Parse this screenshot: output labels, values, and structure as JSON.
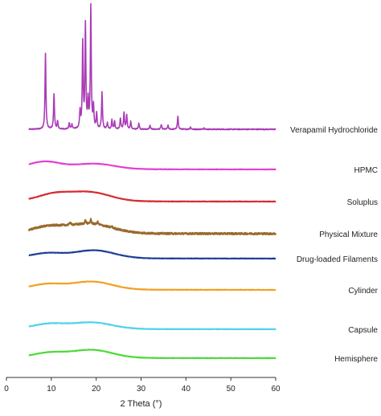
{
  "chart_data": {
    "type": "line",
    "xlabel": "2 Theta (°)",
    "ylabel": "",
    "xlim": [
      0,
      60
    ],
    "xticks": [
      0,
      10,
      20,
      30,
      40,
      50,
      60
    ],
    "x_range_of_data": [
      5,
      60
    ],
    "grid": false,
    "legend": "labels at right end of each trace",
    "series": [
      {
        "name": "Verapamil Hydrochloride",
        "color": "#a93cb6",
        "baseline": 0.0,
        "peaks": [
          {
            "x": 8.7,
            "h": 1.0
          },
          {
            "x": 10.6,
            "h": 0.46
          },
          {
            "x": 11.4,
            "h": 0.1
          },
          {
            "x": 14.0,
            "h": 0.08
          },
          {
            "x": 14.6,
            "h": 0.06
          },
          {
            "x": 16.4,
            "h": 0.22
          },
          {
            "x": 17.0,
            "h": 1.12
          },
          {
            "x": 17.6,
            "h": 1.35
          },
          {
            "x": 18.2,
            "h": 0.35
          },
          {
            "x": 18.8,
            "h": 1.6
          },
          {
            "x": 19.4,
            "h": 0.28
          },
          {
            "x": 20.1,
            "h": 0.2
          },
          {
            "x": 21.3,
            "h": 0.48
          },
          {
            "x": 22.5,
            "h": 0.08
          },
          {
            "x": 23.5,
            "h": 0.12
          },
          {
            "x": 24.1,
            "h": 0.1
          },
          {
            "x": 25.4,
            "h": 0.14
          },
          {
            "x": 26.2,
            "h": 0.22
          },
          {
            "x": 26.8,
            "h": 0.18
          },
          {
            "x": 27.7,
            "h": 0.1
          },
          {
            "x": 29.5,
            "h": 0.08
          },
          {
            "x": 32.0,
            "h": 0.05
          },
          {
            "x": 34.5,
            "h": 0.06
          },
          {
            "x": 36.0,
            "h": 0.05
          },
          {
            "x": 38.2,
            "h": 0.17
          },
          {
            "x": 41.0,
            "h": 0.03
          },
          {
            "x": 44.0,
            "h": 0.02
          }
        ]
      },
      {
        "name": "HPMC",
        "color": "#e33ed0",
        "humps": [
          {
            "x": 8.5,
            "h": 0.2,
            "w": 3.5
          },
          {
            "x": 19.5,
            "h": 0.15,
            "w": 4.5
          }
        ],
        "noise": 0.005
      },
      {
        "name": "Soluplus",
        "color": "#d62b32",
        "humps": [
          {
            "x": 10.5,
            "h": 0.18,
            "w": 3.5
          },
          {
            "x": 18.5,
            "h": 0.25,
            "w": 4.5
          }
        ],
        "noise": 0.006
      },
      {
        "name": "Physical Mixture",
        "color": "#9a6a2c",
        "humps": [
          {
            "x": 9.0,
            "h": 0.16,
            "w": 3.5
          },
          {
            "x": 18.5,
            "h": 0.26,
            "w": 5.0
          }
        ],
        "noise": 0.025,
        "spikes": [
          {
            "x": 14.2,
            "h": 0.08
          },
          {
            "x": 17.6,
            "h": 0.1
          },
          {
            "x": 18.8,
            "h": 0.12
          },
          {
            "x": 20.3,
            "h": 0.08
          },
          {
            "x": 23.5,
            "h": 0.04
          }
        ]
      },
      {
        "name": "Drug-loaded Filaments",
        "color": "#1f3f9a",
        "humps": [
          {
            "x": 9.0,
            "h": 0.13,
            "w": 3.5
          },
          {
            "x": 19.5,
            "h": 0.22,
            "w": 4.5
          }
        ],
        "noise": 0.006
      },
      {
        "name": "Cylinder",
        "color": "#f0a123",
        "humps": [
          {
            "x": 9.0,
            "h": 0.14,
            "w": 3.5
          },
          {
            "x": 19.0,
            "h": 0.22,
            "w": 4.5
          }
        ],
        "noise": 0.006
      },
      {
        "name": "Capsule",
        "color": "#4fd2e8",
        "humps": [
          {
            "x": 9.5,
            "h": 0.13,
            "w": 3.5
          },
          {
            "x": 19.0,
            "h": 0.18,
            "w": 4.5
          }
        ],
        "noise": 0.006
      },
      {
        "name": "Hemisphere",
        "color": "#4fd83b",
        "humps": [
          {
            "x": 9.5,
            "h": 0.13,
            "w": 3.5
          },
          {
            "x": 19.0,
            "h": 0.22,
            "w": 4.5
          }
        ],
        "noise": 0.006
      }
    ]
  }
}
